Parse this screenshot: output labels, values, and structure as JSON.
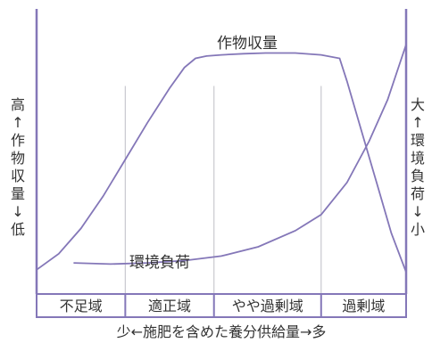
{
  "chart_data": {
    "type": "line",
    "x_range": [
      0,
      100
    ],
    "y_range": [
      0,
      100
    ],
    "zone_boundaries": [
      0,
      24,
      48,
      77,
      100
    ],
    "zones": [
      "不足域",
      "適正域",
      "やや過剰域",
      "過剰域"
    ],
    "series": [
      {
        "name": "作物収量",
        "x": [
          0,
          6,
          12,
          18,
          24,
          30,
          36,
          40,
          43,
          46,
          50,
          56,
          62,
          70,
          77,
          82,
          84,
          88,
          92,
          96,
          100
        ],
        "y": [
          2,
          9,
          20,
          34,
          50,
          66,
          81,
          90,
          94,
          95,
          95.5,
          96,
          96.3,
          96.3,
          95.5,
          94,
          84,
          62,
          40,
          18,
          1
        ]
      },
      {
        "name": "環境負荷",
        "x": [
          10,
          20,
          30,
          40,
          50,
          60,
          70,
          77,
          84,
          90,
          95,
          100
        ],
        "y": [
          5,
          4.5,
          5,
          6,
          8,
          12,
          19,
          26,
          40,
          58,
          76,
          100
        ]
      }
    ],
    "curve_labels": {
      "yield": "作物収量",
      "load": "環境負荷"
    },
    "left_axis_label": [
      "高",
      "↑",
      "作",
      "物",
      "収",
      "量",
      "↓",
      "低"
    ],
    "right_axis_label": [
      "大",
      "↑",
      "環",
      "境",
      "負",
      "荷",
      "↓",
      "小"
    ],
    "x_axis_label": "少←施肥を含めた養分供給量→多",
    "colors": {
      "axis": "#8477b8",
      "curve": "#8477b8",
      "divider": "#c9c9cf",
      "text": "#333333"
    }
  }
}
